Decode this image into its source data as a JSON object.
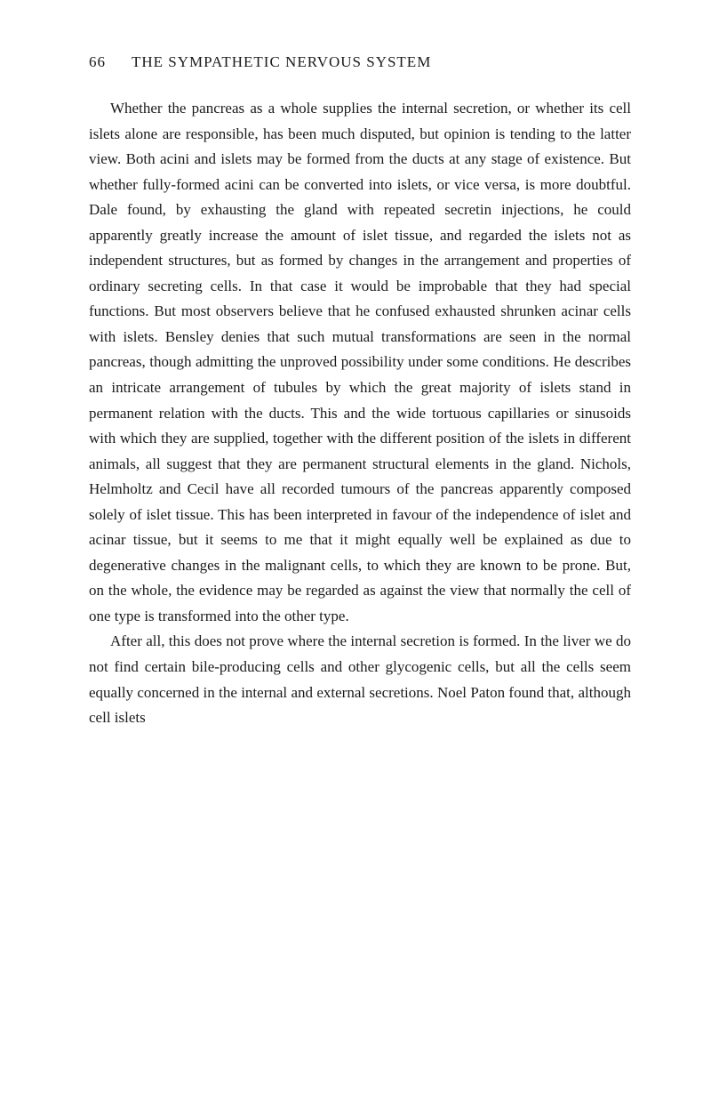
{
  "header": {
    "pageNumber": "66",
    "runningTitle": "THE SYMPATHETIC NERVOUS SYSTEM"
  },
  "paragraphs": [
    "Whether the pancreas as a whole supplies the internal secretion, or whether its cell islets alone are responsible, has been much disputed, but opinion is tending to the latter view. Both acini and islets may be formed from the ducts at any stage of existence. But whether fully-formed acini can be converted into islets, or vice versa, is more doubtful. Dale found, by exhausting the gland with repeated secretin injections, he could apparently greatly increase the amount of islet tissue, and regarded the islets not as independent structures, but as formed by changes in the arrangement and properties of ordinary secreting cells. In that case it would be improbable that they had special functions. But most observers believe that he confused exhausted shrunken acinar cells with islets. Bensley denies that such mutual transformations are seen in the normal pancreas, though admitting the unproved possibility under some conditions. He describes an intricate arrangement of tubules by which the great majority of islets stand in permanent relation with the ducts. This and the wide tortuous capillaries or sinusoids with which they are supplied, together with the different position of the islets in different animals, all suggest that they are permanent structural elements in the gland. Nichols, Helmholtz and Cecil have all recorded tumours of the pancreas apparently composed solely of islet tissue. This has been interpreted in favour of the independence of islet and acinar tissue, but it seems to me that it might equally well be explained as due to degenerative changes in the malignant cells, to which they are known to be prone. But, on the whole, the evidence may be regarded as against the view that normally the cell of one type is transformed into the other type.",
    "After all, this does not prove where the internal secretion is formed. In the liver we do not find certain bile-producing cells and other glycogenic cells, but all the cells seem equally concerned in the internal and external secretions. Noel Paton found that, although cell islets"
  ]
}
